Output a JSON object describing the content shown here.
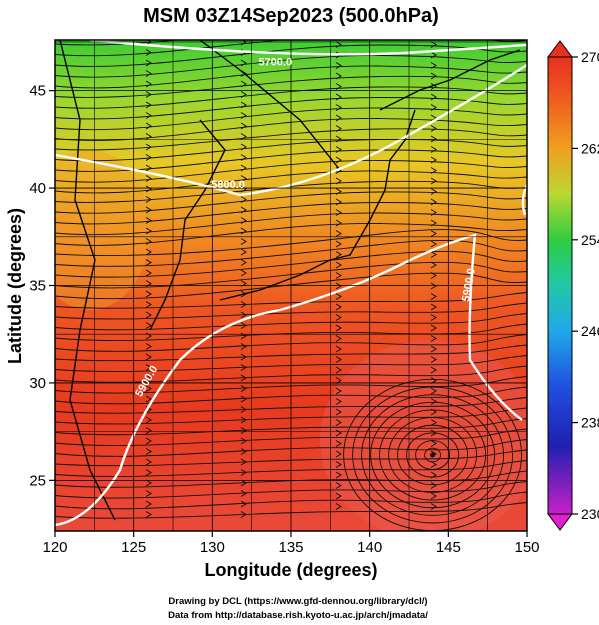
{
  "title": "MSM 03Z14Sep2023 (500.0hPa)",
  "xlabel": "Longitude (degrees)",
  "ylabel": "Latitude  (degrees)",
  "xticks": [
    "120",
    "125",
    "130",
    "135",
    "140",
    "145",
    "150"
  ],
  "yticks": [
    "25",
    "30",
    "35",
    "40",
    "45"
  ],
  "xlim": [
    120,
    150
  ],
  "ylim": [
    22.4,
    47.6
  ],
  "contours": [
    {
      "label": "5700.0",
      "lon": 134.0,
      "lat": 46.3
    },
    {
      "label": "5800.0",
      "lon": 131.0,
      "lat": 40.0
    },
    {
      "label": "5900.0",
      "lon": 126.0,
      "lat": 30.0
    },
    {
      "label": "5900.0",
      "lon": 146.5,
      "lat": 35.0
    }
  ],
  "colorbar": {
    "ticks": [
      "270",
      "262",
      "254",
      "246",
      "238",
      "230"
    ],
    "min": 230,
    "max": 270
  },
  "credits": {
    "line1": "Drawing by DCL (https://www.gfd-dennou.org/library/dcl/)",
    "line2": "Data from http://database.rish.kyoto-u.ac.jp/arch/jmadata/"
  },
  "colors": {
    "warm": "#e8321e",
    "mid": "#f06a20",
    "cool": "#a8d830",
    "cold": "#44cc33",
    "contour": "#ffffff"
  }
}
